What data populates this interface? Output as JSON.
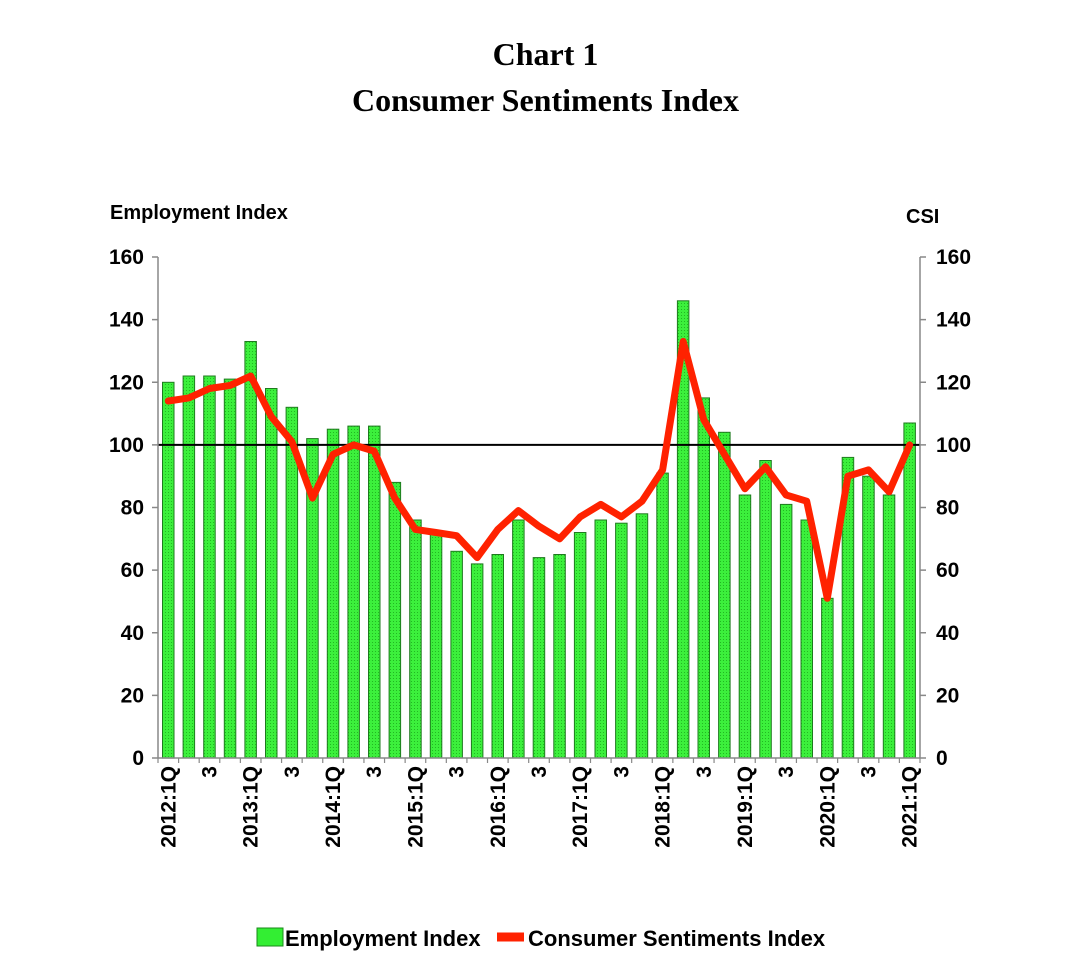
{
  "titles": {
    "line1": "Chart 1",
    "line2": "Consumer Sentiments Index"
  },
  "chart_data": {
    "type": "bar",
    "title": "Consumer Sentiments Index",
    "ylabel_left": "Employment Index",
    "ylabel_right": "CSI",
    "ylim_left": [
      0,
      160
    ],
    "ylim_right": [
      0,
      160
    ],
    "yticks": [
      "0",
      "20",
      "40",
      "60",
      "80",
      "100",
      "120",
      "140",
      "160"
    ],
    "reference_line": 100,
    "categories": [
      "2012:1Q",
      "2012:2Q",
      "2012:3Q",
      "2012:4Q",
      "2013:1Q",
      "2013:2Q",
      "2013:3Q",
      "2013:4Q",
      "2014:1Q",
      "2014:2Q",
      "2014:3Q",
      "2014:4Q",
      "2015:1Q",
      "2015:2Q",
      "2015:3Q",
      "2015:4Q",
      "2016:1Q",
      "2016:2Q",
      "2016:3Q",
      "2016:4Q",
      "2017:1Q",
      "2017:2Q",
      "2017:3Q",
      "2017:4Q",
      "2018:1Q",
      "2018:2Q",
      "2018:3Q",
      "2018:4Q",
      "2019:1Q",
      "2019:2Q",
      "2019:3Q",
      "2019:4Q",
      "2020:1Q",
      "2020:2Q",
      "2020:3Q",
      "2020:4Q",
      "2021:1Q"
    ],
    "tick_labels": [
      "2012:1Q",
      "",
      "3",
      "",
      "2013:1Q",
      "",
      "3",
      "",
      "2014:1Q",
      "",
      "3",
      "",
      "2015:1Q",
      "",
      "3",
      "",
      "2016:1Q",
      "",
      "3",
      "",
      "2017:1Q",
      "",
      "3",
      "",
      "2018:1Q",
      "",
      "3",
      "",
      "2019:1Q",
      "",
      "3",
      "",
      "2020:1Q",
      "",
      "3",
      "",
      "2021:1Q"
    ],
    "series": [
      {
        "name": "Employment Index",
        "type": "bar",
        "color": "#33ee33",
        "values": [
          120,
          122,
          122,
          121,
          133,
          118,
          112,
          102,
          105,
          106,
          106,
          88,
          76,
          72,
          66,
          62,
          65,
          76,
          64,
          65,
          72,
          76,
          75,
          78,
          91,
          146,
          115,
          104,
          84,
          95,
          81,
          76,
          51,
          96,
          90,
          84,
          107
        ]
      },
      {
        "name": "Consumer Sentiments Index",
        "type": "line",
        "color": "#ff3300",
        "values": [
          114,
          115,
          118,
          119,
          122,
          109,
          101,
          83,
          97,
          100,
          98,
          83,
          73,
          72,
          71,
          64,
          73,
          79,
          74,
          70,
          77,
          81,
          77,
          82,
          92,
          133,
          108,
          97,
          86,
          93,
          84,
          82,
          51,
          90,
          92,
          85,
          100
        ]
      }
    ]
  },
  "legend": {
    "employment_label": "Employment Index",
    "csi_label": "Consumer Sentiments Index"
  }
}
